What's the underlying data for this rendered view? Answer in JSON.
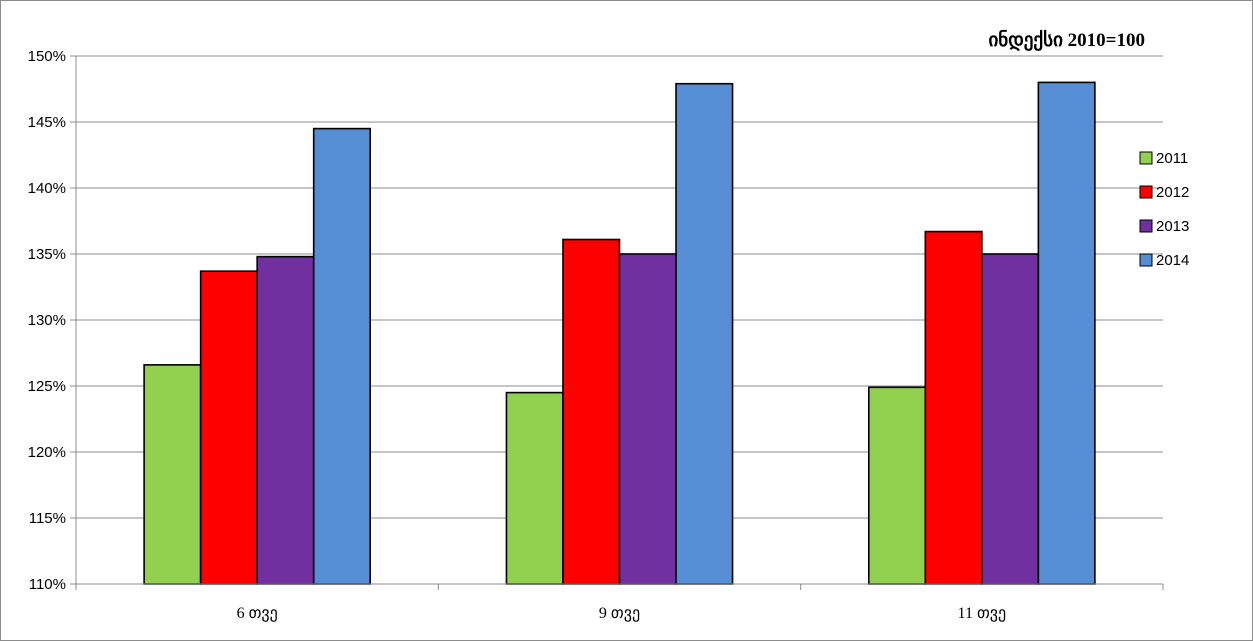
{
  "chart_data": {
    "type": "bar",
    "title": "ინდექსი 2010=100",
    "categories": [
      "6 თვე",
      "9 თვე",
      "11 თვე"
    ],
    "series": [
      {
        "name": "2011",
        "color": "#92d050",
        "values": [
          126.6,
          124.5,
          124.9
        ]
      },
      {
        "name": "2012",
        "color": "#ff0000",
        "values": [
          133.7,
          136.1,
          136.7
        ]
      },
      {
        "name": "2013",
        "color": "#7030a0",
        "values": [
          134.8,
          135.0,
          135.0
        ]
      },
      {
        "name": "2014",
        "color": "#558ed5",
        "values": [
          144.5,
          147.9,
          148.0
        ]
      }
    ],
    "yticks": [
      "110%",
      "115%",
      "120%",
      "125%",
      "130%",
      "135%",
      "140%",
      "145%",
      "150%"
    ],
    "ylim": [
      110,
      150
    ],
    "ystep": 5,
    "grid": true,
    "legend_position": "right"
  }
}
